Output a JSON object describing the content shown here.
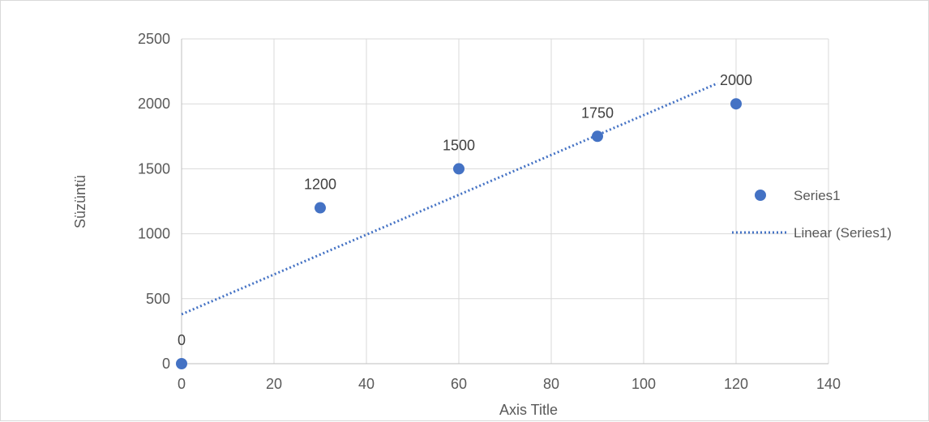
{
  "chart_data": {
    "type": "scatter",
    "title": "",
    "xlabel": "Axis Title",
    "ylabel": "Süzüntü",
    "xlim": [
      0,
      140
    ],
    "ylim": [
      0,
      2500
    ],
    "x_ticks": [
      0,
      20,
      40,
      60,
      80,
      100,
      120,
      140
    ],
    "y_ticks": [
      0,
      500,
      1000,
      1500,
      2000,
      2500
    ],
    "grid": true,
    "legend_position": "right",
    "series": [
      {
        "name": "Series1",
        "color": "#4472c4",
        "marker": "circle",
        "points": [
          {
            "x": 0,
            "y": 0,
            "label": "0"
          },
          {
            "x": 30,
            "y": 1200,
            "label": "1200"
          },
          {
            "x": 60,
            "y": 1500,
            "label": "1500"
          },
          {
            "x": 90,
            "y": 1750,
            "label": "1750"
          },
          {
            "x": 120,
            "y": 2000,
            "label": "2000"
          }
        ]
      }
    ],
    "trendline": {
      "name": "Linear (Series1)",
      "type": "linear",
      "style": "dotted",
      "color": "#4472c4",
      "x_range": [
        0,
        116
      ],
      "slope": 15.33,
      "intercept": 380
    }
  }
}
